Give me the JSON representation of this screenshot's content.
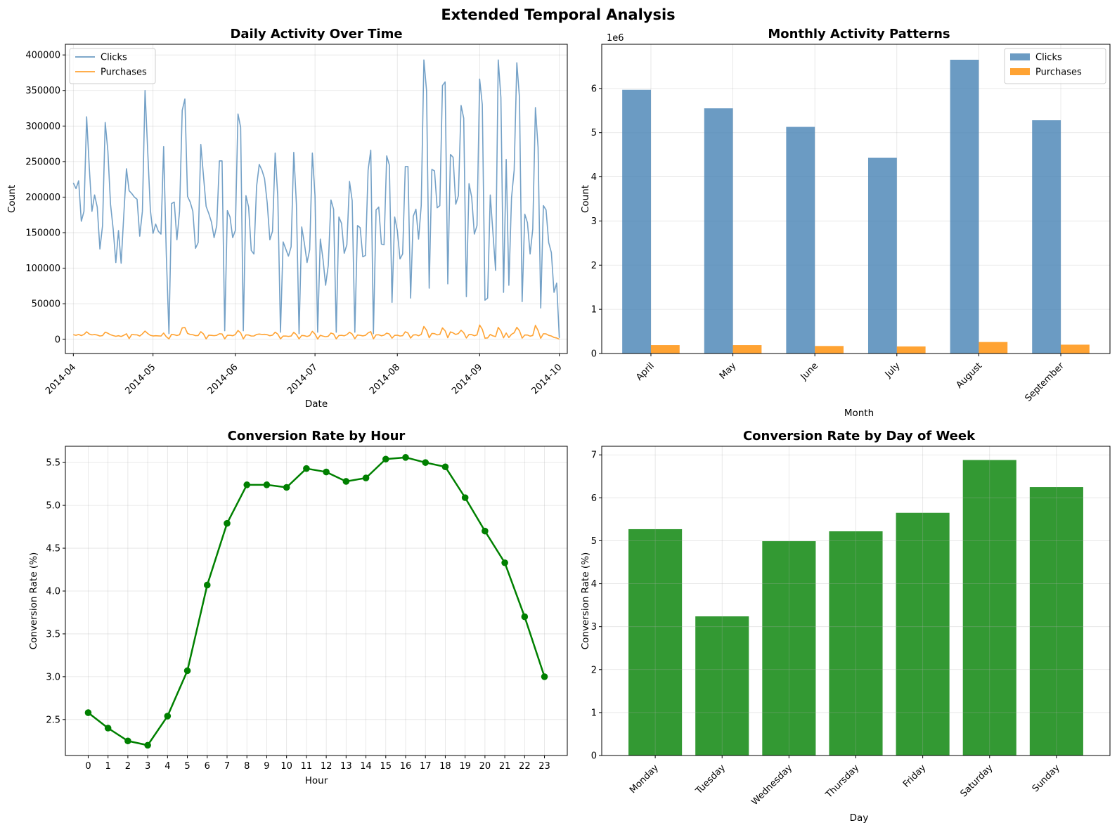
{
  "figure": {
    "title": "Extended Temporal Analysis"
  },
  "chart_data": [
    {
      "id": "daily",
      "type": "line",
      "title": "Daily Activity Over Time",
      "xlabel": "Date",
      "ylabel": "Count",
      "x_start": "2014-04-01",
      "xlim_days": [
        -3,
        186
      ],
      "xticks": [
        {
          "label": "2014-04",
          "day": 0
        },
        {
          "label": "2014-05",
          "day": 30
        },
        {
          "label": "2014-06",
          "day": 61
        },
        {
          "label": "2014-07",
          "day": 91
        },
        {
          "label": "2014-08",
          "day": 122
        },
        {
          "label": "2014-09",
          "day": 153
        },
        {
          "label": "2014-10",
          "day": 183
        }
      ],
      "ylim": [
        -20000,
        415000
      ],
      "yticks": [
        0,
        50000,
        100000,
        150000,
        200000,
        250000,
        300000,
        350000,
        400000
      ],
      "grid": true,
      "legend": "top-left",
      "series": [
        {
          "name": "Clicks",
          "color": "#4682b4",
          "values": [
            220000,
            212000,
            223000,
            166000,
            180000,
            313000,
            242000,
            180000,
            203000,
            186000,
            127000,
            160000,
            305000,
            265000,
            190000,
            155000,
            108000,
            153000,
            107000,
            175000,
            240000,
            209000,
            205000,
            200000,
            197000,
            145000,
            180000,
            350000,
            265000,
            182000,
            149000,
            162000,
            152000,
            148000,
            271000,
            120000,
            8000,
            191000,
            193000,
            140000,
            180000,
            322000,
            338000,
            201000,
            193000,
            180000,
            128000,
            136000,
            274000,
            230000,
            187000,
            177000,
            165000,
            143000,
            160000,
            251000,
            251000,
            12000,
            181000,
            172000,
            143000,
            153000,
            317000,
            298000,
            12000,
            202000,
            186000,
            125000,
            120000,
            215000,
            246000,
            238000,
            226000,
            192000,
            140000,
            152000,
            262000,
            200000,
            10000,
            137000,
            127000,
            117000,
            130000,
            263000,
            190000,
            8000,
            158000,
            135000,
            108000,
            126000,
            262000,
            202000,
            10000,
            141000,
            113000,
            76000,
            104000,
            196000,
            183000,
            10000,
            172000,
            163000,
            121000,
            133000,
            222000,
            195000,
            10000,
            160000,
            157000,
            116000,
            118000,
            238000,
            266000,
            8000,
            182000,
            186000,
            134000,
            133000,
            258000,
            245000,
            52000,
            172000,
            153000,
            113000,
            120000,
            243000,
            243000,
            58000,
            173000,
            183000,
            141000,
            188000,
            393000,
            350000,
            72000,
            239000,
            237000,
            185000,
            188000,
            357000,
            362000,
            78000,
            260000,
            256000,
            190000,
            202000,
            329000,
            311000,
            60000,
            219000,
            200000,
            148000,
            160000,
            366000,
            330000,
            55000,
            58000,
            203000,
            150000,
            97000,
            393000,
            340000,
            66000,
            253000,
            76000,
            199000,
            238000,
            389000,
            340000,
            53000,
            176000,
            164000,
            120000,
            155000,
            326000,
            270000,
            44000,
            188000,
            182000,
            136000,
            122000,
            66000,
            79000,
            2000
          ]
        },
        {
          "name": "Purchases",
          "color": "#ff8c00",
          "values": [
            6500,
            5600,
            6800,
            5200,
            6800,
            10600,
            7400,
            6200,
            6600,
            6000,
            4600,
            5200,
            10000,
            8500,
            6400,
            5200,
            4200,
            5000,
            4000,
            5600,
            7800,
            1000,
            6800,
            6400,
            6200,
            4600,
            7600,
            11600,
            8200,
            5600,
            4700,
            5000,
            4800,
            4600,
            8800,
            3600,
            600,
            7000,
            6400,
            5300,
            6400,
            16000,
            16500,
            8300,
            6800,
            6400,
            5100,
            5300,
            10700,
            7600,
            600,
            5800,
            5500,
            5100,
            5600,
            7800,
            7500,
            600,
            5600,
            5700,
            5000,
            6700,
            12400,
            9000,
            600,
            6200,
            6000,
            4600,
            4600,
            6800,
            7400,
            6800,
            7000,
            6400,
            5000,
            5800,
            10000,
            7200,
            600,
            4500,
            4600,
            4000,
            4600,
            9800,
            6500,
            600,
            5400,
            5000,
            4000,
            5200,
            11200,
            7400,
            400,
            5600,
            4500,
            3600,
            4300,
            8800,
            7400,
            600,
            5300,
            5600,
            4900,
            6500,
            10000,
            7400,
            800,
            6000,
            5600,
            4800,
            5600,
            9000,
            10800,
            600,
            6200,
            6300,
            4900,
            5800,
            8700,
            7400,
            1500,
            5500,
            5800,
            4600,
            5100,
            10600,
            8800,
            1700,
            6000,
            6400,
            5000,
            6800,
            18000,
            12800,
            2200,
            8200,
            8000,
            6200,
            6800,
            16000,
            12000,
            2200,
            10400,
            9000,
            6800,
            8100,
            12700,
            9200,
            1800,
            6800,
            6600,
            5000,
            6200,
            20000,
            14000,
            1600,
            1900,
            6800,
            4800,
            3800,
            16800,
            11600,
            2100,
            8800,
            2500,
            7000,
            9200,
            16800,
            12000,
            1600,
            6000,
            6000,
            4400,
            5400,
            19600,
            12400,
            1400,
            7800,
            7600,
            5500,
            4600,
            2600,
            1800,
            200
          ]
        }
      ]
    },
    {
      "id": "monthly",
      "type": "bar",
      "title": "Monthly Activity Patterns",
      "xlabel": "Month",
      "ylabel": "Count",
      "offset_label": "1e6",
      "categories": [
        "April",
        "May",
        "June",
        "July",
        "August",
        "September"
      ],
      "ylim": [
        0,
        7.0
      ],
      "yticks": [
        0,
        1,
        2,
        3,
        4,
        5,
        6
      ],
      "grid": true,
      "legend": "top-right",
      "series": [
        {
          "name": "Clicks",
          "color": "#4682b4",
          "values": [
            5.97,
            5.55,
            5.13,
            4.43,
            6.65,
            5.28
          ]
        },
        {
          "name": "Purchases",
          "color": "#ff8c00",
          "values": [
            0.19,
            0.19,
            0.17,
            0.16,
            0.26,
            0.2
          ]
        }
      ]
    },
    {
      "id": "hourly",
      "type": "line",
      "title": "Conversion Rate by Hour",
      "xlabel": "Hour",
      "ylabel": "Conversion Rate (%)",
      "xlim": [
        -1.15,
        24.15
      ],
      "xticks": [
        0,
        1,
        2,
        3,
        4,
        5,
        6,
        7,
        8,
        9,
        10,
        11,
        12,
        13,
        14,
        15,
        16,
        17,
        18,
        19,
        20,
        21,
        22,
        23
      ],
      "ylim": [
        2.08,
        5.69
      ],
      "yticks": [
        2.5,
        3.0,
        3.5,
        4.0,
        4.5,
        5.0,
        5.5
      ],
      "grid": true,
      "color": "#008000",
      "x": [
        0,
        1,
        2,
        3,
        4,
        5,
        6,
        7,
        8,
        9,
        10,
        11,
        12,
        13,
        14,
        15,
        16,
        17,
        18,
        19,
        20,
        21,
        22,
        23
      ],
      "values": [
        2.58,
        2.4,
        2.25,
        2.2,
        2.54,
        3.07,
        4.07,
        4.79,
        5.24,
        5.24,
        5.21,
        5.43,
        5.39,
        5.28,
        5.32,
        5.54,
        5.56,
        5.5,
        5.45,
        5.09,
        4.7,
        4.33,
        3.7,
        3.0
      ]
    },
    {
      "id": "weekday",
      "type": "bar",
      "title": "Conversion Rate by Day of Week",
      "xlabel": "Day",
      "ylabel": "Conversion Rate (%)",
      "categories": [
        "Monday",
        "Tuesday",
        "Wednesday",
        "Thursday",
        "Friday",
        "Saturday",
        "Sunday"
      ],
      "ylim": [
        0,
        7.2
      ],
      "yticks": [
        0,
        1,
        2,
        3,
        4,
        5,
        6,
        7
      ],
      "grid": true,
      "color": "#008000",
      "values": [
        5.27,
        3.24,
        4.99,
        5.22,
        5.65,
        6.88,
        6.25
      ]
    }
  ]
}
